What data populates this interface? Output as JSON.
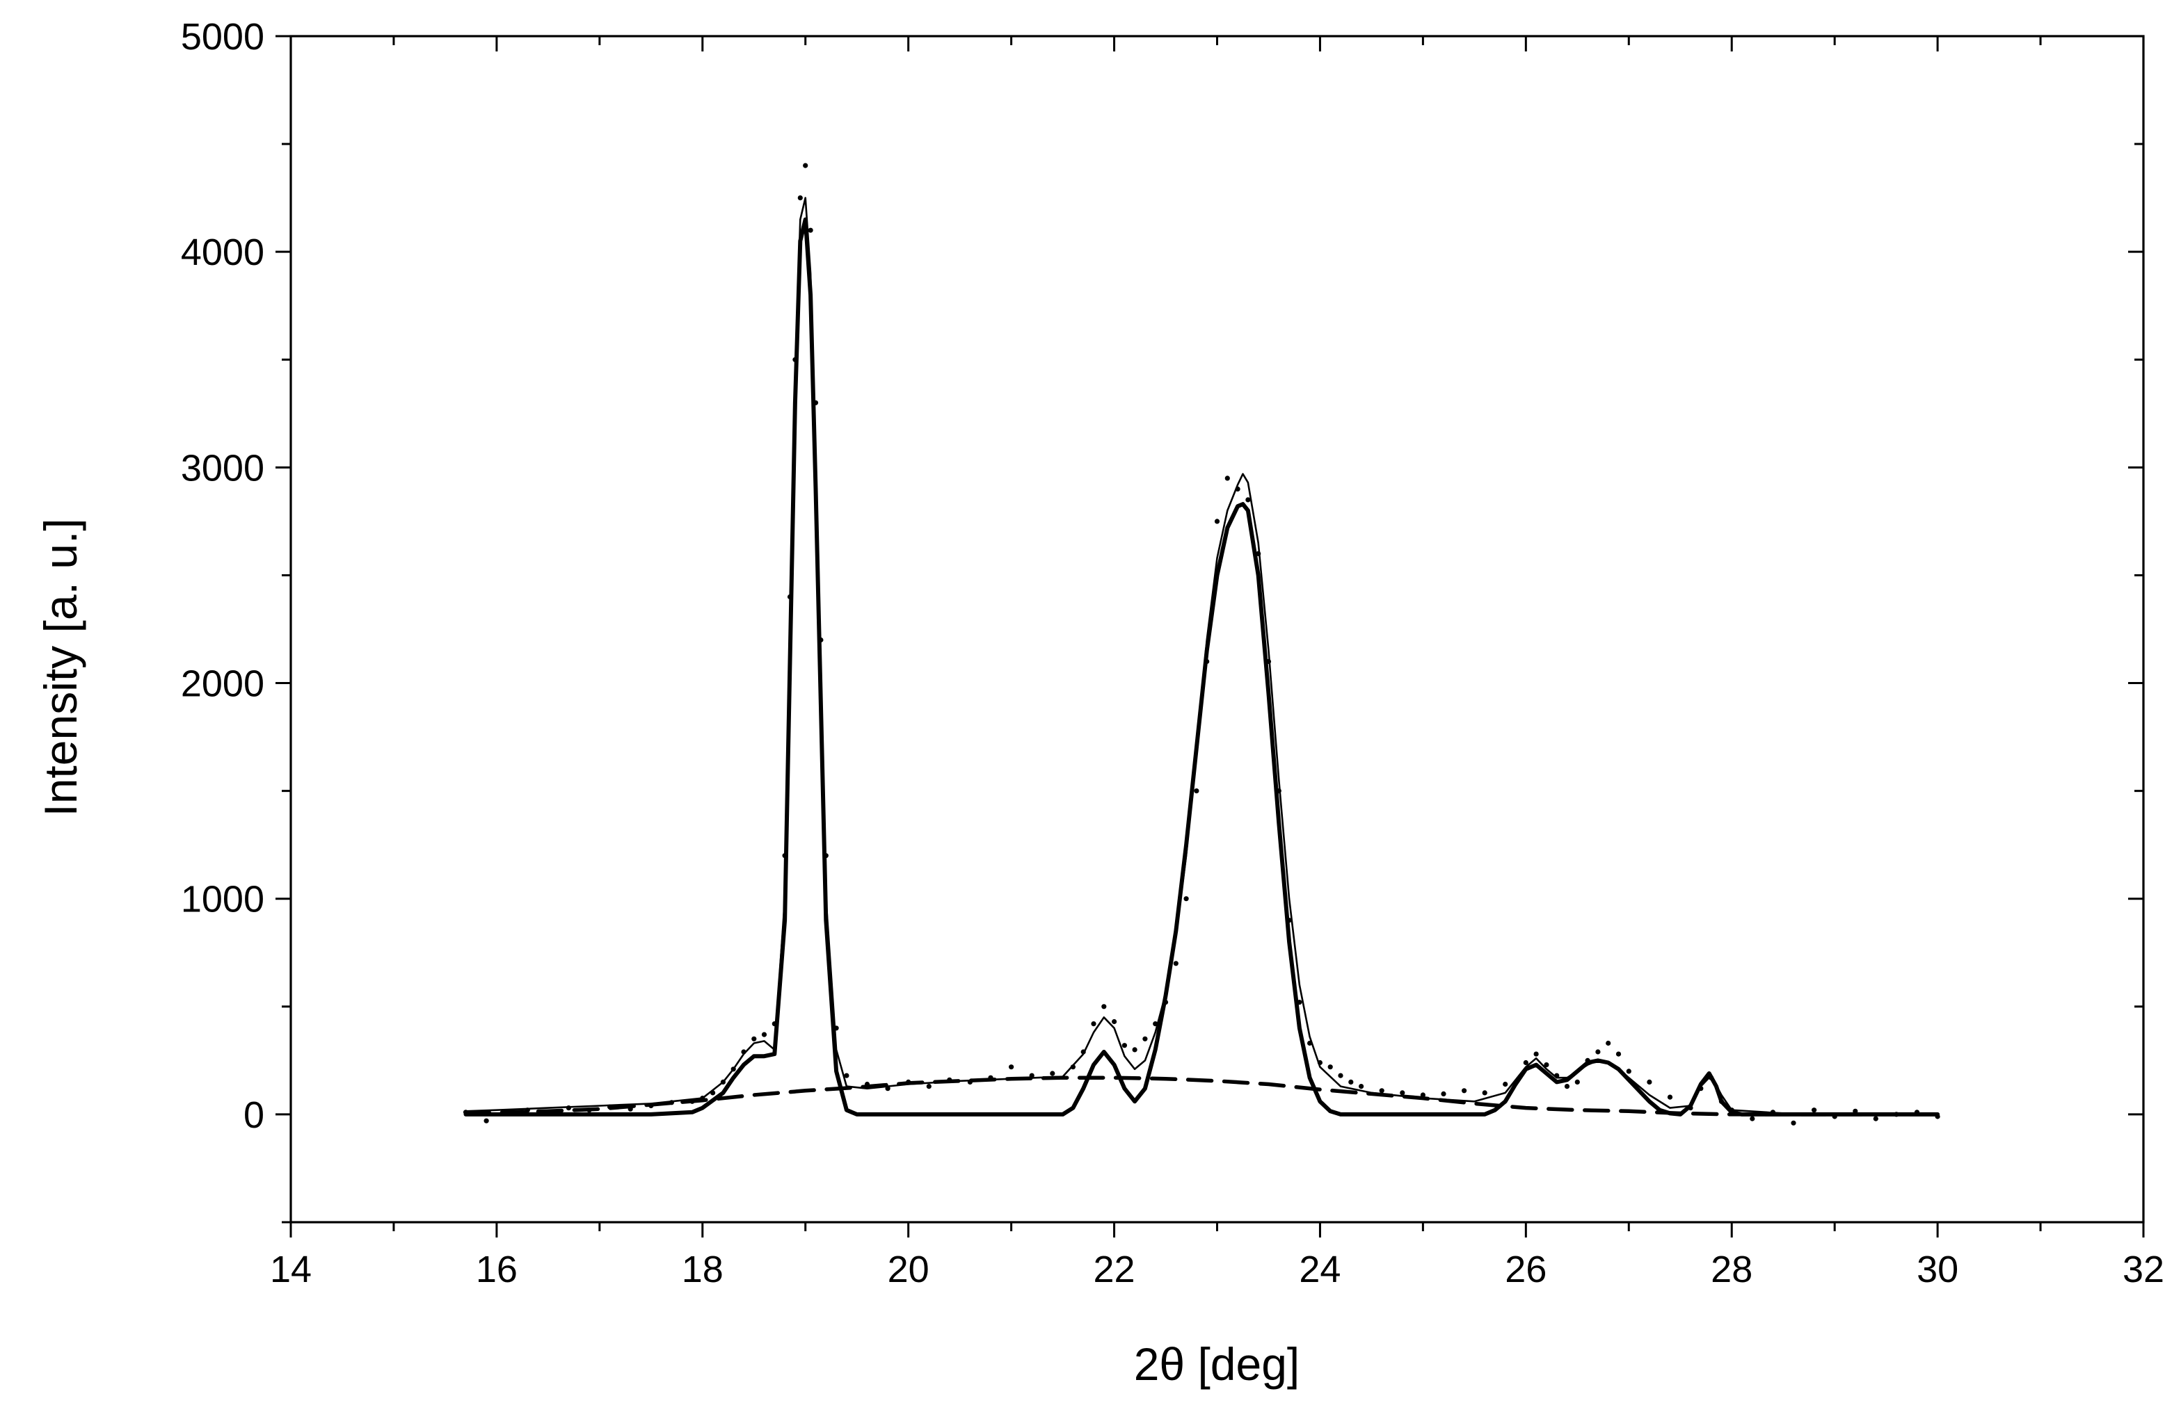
{
  "chart_data": {
    "type": "line",
    "xlabel": "2θ [deg]",
    "ylabel": "Intensity [a. u.]",
    "xlim": [
      14,
      32
    ],
    "ylim": [
      -500,
      5000
    ],
    "xticks": [
      14,
      16,
      18,
      20,
      22,
      24,
      26,
      28,
      30,
      32
    ],
    "yticks": [
      0,
      1000,
      2000,
      3000,
      4000,
      5000
    ],
    "x_minor_step": 1,
    "y_minor_step": 500,
    "grid": false,
    "legend": "none",
    "series": [
      {
        "style": "dotted",
        "points": [
          [
            15.7,
            10
          ],
          [
            15.9,
            -30
          ],
          [
            16.1,
            10
          ],
          [
            16.3,
            20
          ],
          [
            16.5,
            5
          ],
          [
            16.7,
            30
          ],
          [
            16.9,
            20
          ],
          [
            17.1,
            35
          ],
          [
            17.3,
            25
          ],
          [
            17.5,
            40
          ],
          [
            17.7,
            55
          ],
          [
            17.9,
            60
          ],
          [
            18.0,
            75
          ],
          [
            18.1,
            100
          ],
          [
            18.2,
            150
          ],
          [
            18.3,
            210
          ],
          [
            18.4,
            290
          ],
          [
            18.5,
            350
          ],
          [
            18.6,
            370
          ],
          [
            18.7,
            420
          ],
          [
            18.8,
            1200
          ],
          [
            18.85,
            2400
          ],
          [
            18.9,
            3500
          ],
          [
            18.95,
            4250
          ],
          [
            19.0,
            4400
          ],
          [
            19.05,
            4100
          ],
          [
            19.1,
            3300
          ],
          [
            19.15,
            2200
          ],
          [
            19.2,
            1200
          ],
          [
            19.3,
            400
          ],
          [
            19.4,
            180
          ],
          [
            19.6,
            140
          ],
          [
            19.8,
            120
          ],
          [
            20.0,
            150
          ],
          [
            20.2,
            130
          ],
          [
            20.4,
            160
          ],
          [
            20.6,
            150
          ],
          [
            20.8,
            170
          ],
          [
            21.0,
            220
          ],
          [
            21.2,
            180
          ],
          [
            21.4,
            190
          ],
          [
            21.6,
            220
          ],
          [
            21.7,
            290
          ],
          [
            21.8,
            420
          ],
          [
            21.9,
            500
          ],
          [
            22.0,
            430
          ],
          [
            22.1,
            320
          ],
          [
            22.2,
            300
          ],
          [
            22.3,
            350
          ],
          [
            22.4,
            420
          ],
          [
            22.5,
            520
          ],
          [
            22.6,
            700
          ],
          [
            22.7,
            1000
          ],
          [
            22.8,
            1500
          ],
          [
            22.9,
            2100
          ],
          [
            23.0,
            2750
          ],
          [
            23.1,
            2950
          ],
          [
            23.2,
            2900
          ],
          [
            23.3,
            2850
          ],
          [
            23.4,
            2600
          ],
          [
            23.5,
            2100
          ],
          [
            23.6,
            1500
          ],
          [
            23.7,
            900
          ],
          [
            23.8,
            520
          ],
          [
            23.9,
            330
          ],
          [
            24.0,
            240
          ],
          [
            24.1,
            220
          ],
          [
            24.2,
            180
          ],
          [
            24.3,
            150
          ],
          [
            24.4,
            130
          ],
          [
            24.6,
            110
          ],
          [
            24.8,
            100
          ],
          [
            25.0,
            90
          ],
          [
            25.2,
            95
          ],
          [
            25.4,
            110
          ],
          [
            25.6,
            100
          ],
          [
            25.8,
            140
          ],
          [
            26.0,
            240
          ],
          [
            26.1,
            280
          ],
          [
            26.2,
            230
          ],
          [
            26.3,
            180
          ],
          [
            26.4,
            130
          ],
          [
            26.5,
            150
          ],
          [
            26.6,
            250
          ],
          [
            26.7,
            290
          ],
          [
            26.8,
            330
          ],
          [
            26.9,
            280
          ],
          [
            27.0,
            200
          ],
          [
            27.2,
            150
          ],
          [
            27.4,
            80
          ],
          [
            27.6,
            30
          ],
          [
            27.7,
            120
          ],
          [
            27.8,
            170
          ],
          [
            27.9,
            60
          ],
          [
            28.0,
            20
          ],
          [
            28.2,
            -20
          ],
          [
            28.4,
            10
          ],
          [
            28.6,
            -40
          ],
          [
            28.8,
            20
          ],
          [
            29.0,
            -10
          ],
          [
            29.2,
            15
          ],
          [
            29.4,
            -20
          ],
          [
            29.6,
            0
          ],
          [
            29.8,
            10
          ],
          [
            30.0,
            -10
          ]
        ]
      },
      {
        "style": "thin-solid",
        "points": [
          [
            15.7,
            15
          ],
          [
            16.0,
            20
          ],
          [
            16.5,
            30
          ],
          [
            17.0,
            40
          ],
          [
            17.5,
            50
          ],
          [
            18.0,
            75
          ],
          [
            18.2,
            150
          ],
          [
            18.3,
            210
          ],
          [
            18.4,
            280
          ],
          [
            18.5,
            330
          ],
          [
            18.6,
            340
          ],
          [
            18.7,
            300
          ],
          [
            18.8,
            1000
          ],
          [
            18.85,
            2200
          ],
          [
            18.9,
            3400
          ],
          [
            18.95,
            4150
          ],
          [
            19.0,
            4250
          ],
          [
            19.05,
            3900
          ],
          [
            19.1,
            3000
          ],
          [
            19.15,
            2000
          ],
          [
            19.2,
            1000
          ],
          [
            19.3,
            300
          ],
          [
            19.4,
            130
          ],
          [
            19.6,
            120
          ],
          [
            20.0,
            140
          ],
          [
            20.5,
            155
          ],
          [
            21.0,
            165
          ],
          [
            21.5,
            175
          ],
          [
            21.7,
            280
          ],
          [
            21.8,
            380
          ],
          [
            21.9,
            450
          ],
          [
            22.0,
            400
          ],
          [
            22.1,
            270
          ],
          [
            22.2,
            210
          ],
          [
            22.3,
            250
          ],
          [
            22.4,
            380
          ],
          [
            22.5,
            560
          ],
          [
            22.6,
            830
          ],
          [
            22.7,
            1200
          ],
          [
            22.8,
            1700
          ],
          [
            22.9,
            2200
          ],
          [
            23.0,
            2580
          ],
          [
            23.1,
            2800
          ],
          [
            23.2,
            2920
          ],
          [
            23.25,
            2970
          ],
          [
            23.3,
            2930
          ],
          [
            23.4,
            2650
          ],
          [
            23.5,
            2150
          ],
          [
            23.6,
            1550
          ],
          [
            23.7,
            1000
          ],
          [
            23.8,
            600
          ],
          [
            23.9,
            360
          ],
          [
            24.0,
            220
          ],
          [
            24.2,
            130
          ],
          [
            24.5,
            100
          ],
          [
            25.0,
            75
          ],
          [
            25.5,
            60
          ],
          [
            25.8,
            100
          ],
          [
            26.0,
            220
          ],
          [
            26.1,
            260
          ],
          [
            26.2,
            210
          ],
          [
            26.3,
            170
          ],
          [
            26.4,
            170
          ],
          [
            26.5,
            200
          ],
          [
            26.6,
            230
          ],
          [
            26.7,
            250
          ],
          [
            26.8,
            240
          ],
          [
            26.9,
            210
          ],
          [
            27.0,
            170
          ],
          [
            27.2,
            90
          ],
          [
            27.4,
            30
          ],
          [
            27.6,
            40
          ],
          [
            27.7,
            130
          ],
          [
            27.8,
            180
          ],
          [
            27.9,
            90
          ],
          [
            28.0,
            20
          ],
          [
            28.5,
            5
          ],
          [
            29.0,
            0
          ],
          [
            30.0,
            0
          ]
        ]
      },
      {
        "style": "thick-solid",
        "points": [
          [
            15.7,
            0
          ],
          [
            17.5,
            0
          ],
          [
            17.9,
            10
          ],
          [
            18.0,
            30
          ],
          [
            18.2,
            100
          ],
          [
            18.3,
            170
          ],
          [
            18.4,
            230
          ],
          [
            18.5,
            270
          ],
          [
            18.6,
            270
          ],
          [
            18.7,
            280
          ],
          [
            18.8,
            900
          ],
          [
            18.85,
            2100
          ],
          [
            18.9,
            3300
          ],
          [
            18.95,
            4050
          ],
          [
            19.0,
            4150
          ],
          [
            19.05,
            3800
          ],
          [
            19.1,
            2900
          ],
          [
            19.15,
            1900
          ],
          [
            19.2,
            900
          ],
          [
            19.3,
            200
          ],
          [
            19.4,
            20
          ],
          [
            19.5,
            0
          ],
          [
            21.5,
            0
          ],
          [
            21.6,
            30
          ],
          [
            21.7,
            120
          ],
          [
            21.8,
            230
          ],
          [
            21.9,
            290
          ],
          [
            22.0,
            230
          ],
          [
            22.1,
            120
          ],
          [
            22.2,
            60
          ],
          [
            22.3,
            120
          ],
          [
            22.4,
            300
          ],
          [
            22.5,
            550
          ],
          [
            22.6,
            850
          ],
          [
            22.7,
            1250
          ],
          [
            22.8,
            1700
          ],
          [
            22.9,
            2150
          ],
          [
            23.0,
            2500
          ],
          [
            23.1,
            2720
          ],
          [
            23.2,
            2820
          ],
          [
            23.25,
            2830
          ],
          [
            23.3,
            2800
          ],
          [
            23.4,
            2500
          ],
          [
            23.5,
            1950
          ],
          [
            23.6,
            1350
          ],
          [
            23.7,
            800
          ],
          [
            23.8,
            400
          ],
          [
            23.9,
            170
          ],
          [
            24.0,
            60
          ],
          [
            24.1,
            15
          ],
          [
            24.2,
            0
          ],
          [
            25.6,
            0
          ],
          [
            25.7,
            20
          ],
          [
            25.8,
            60
          ],
          [
            25.9,
            140
          ],
          [
            26.0,
            210
          ],
          [
            26.1,
            230
          ],
          [
            26.2,
            190
          ],
          [
            26.3,
            150
          ],
          [
            26.4,
            160
          ],
          [
            26.5,
            200
          ],
          [
            26.6,
            240
          ],
          [
            26.7,
            250
          ],
          [
            26.8,
            240
          ],
          [
            26.9,
            210
          ],
          [
            27.0,
            160
          ],
          [
            27.1,
            110
          ],
          [
            27.2,
            60
          ],
          [
            27.3,
            20
          ],
          [
            27.4,
            5
          ],
          [
            27.5,
            0
          ],
          [
            27.6,
            40
          ],
          [
            27.7,
            140
          ],
          [
            27.78,
            190
          ],
          [
            27.85,
            130
          ],
          [
            27.9,
            60
          ],
          [
            28.0,
            10
          ],
          [
            28.1,
            0
          ],
          [
            30.0,
            0
          ]
        ]
      },
      {
        "style": "dashed",
        "points": [
          [
            15.7,
            5
          ],
          [
            16.5,
            15
          ],
          [
            17.0,
            25
          ],
          [
            17.5,
            45
          ],
          [
            18.0,
            65
          ],
          [
            18.5,
            90
          ],
          [
            19.0,
            110
          ],
          [
            19.5,
            125
          ],
          [
            20.0,
            145
          ],
          [
            20.5,
            155
          ],
          [
            21.0,
            165
          ],
          [
            21.5,
            170
          ],
          [
            22.0,
            170
          ],
          [
            22.5,
            165
          ],
          [
            23.0,
            155
          ],
          [
            23.5,
            140
          ],
          [
            24.0,
            115
          ],
          [
            24.5,
            95
          ],
          [
            25.0,
            75
          ],
          [
            25.5,
            50
          ],
          [
            26.0,
            30
          ],
          [
            26.5,
            20
          ],
          [
            27.0,
            15
          ],
          [
            27.5,
            5
          ],
          [
            28.0,
            0
          ],
          [
            30.0,
            0
          ]
        ]
      }
    ]
  }
}
